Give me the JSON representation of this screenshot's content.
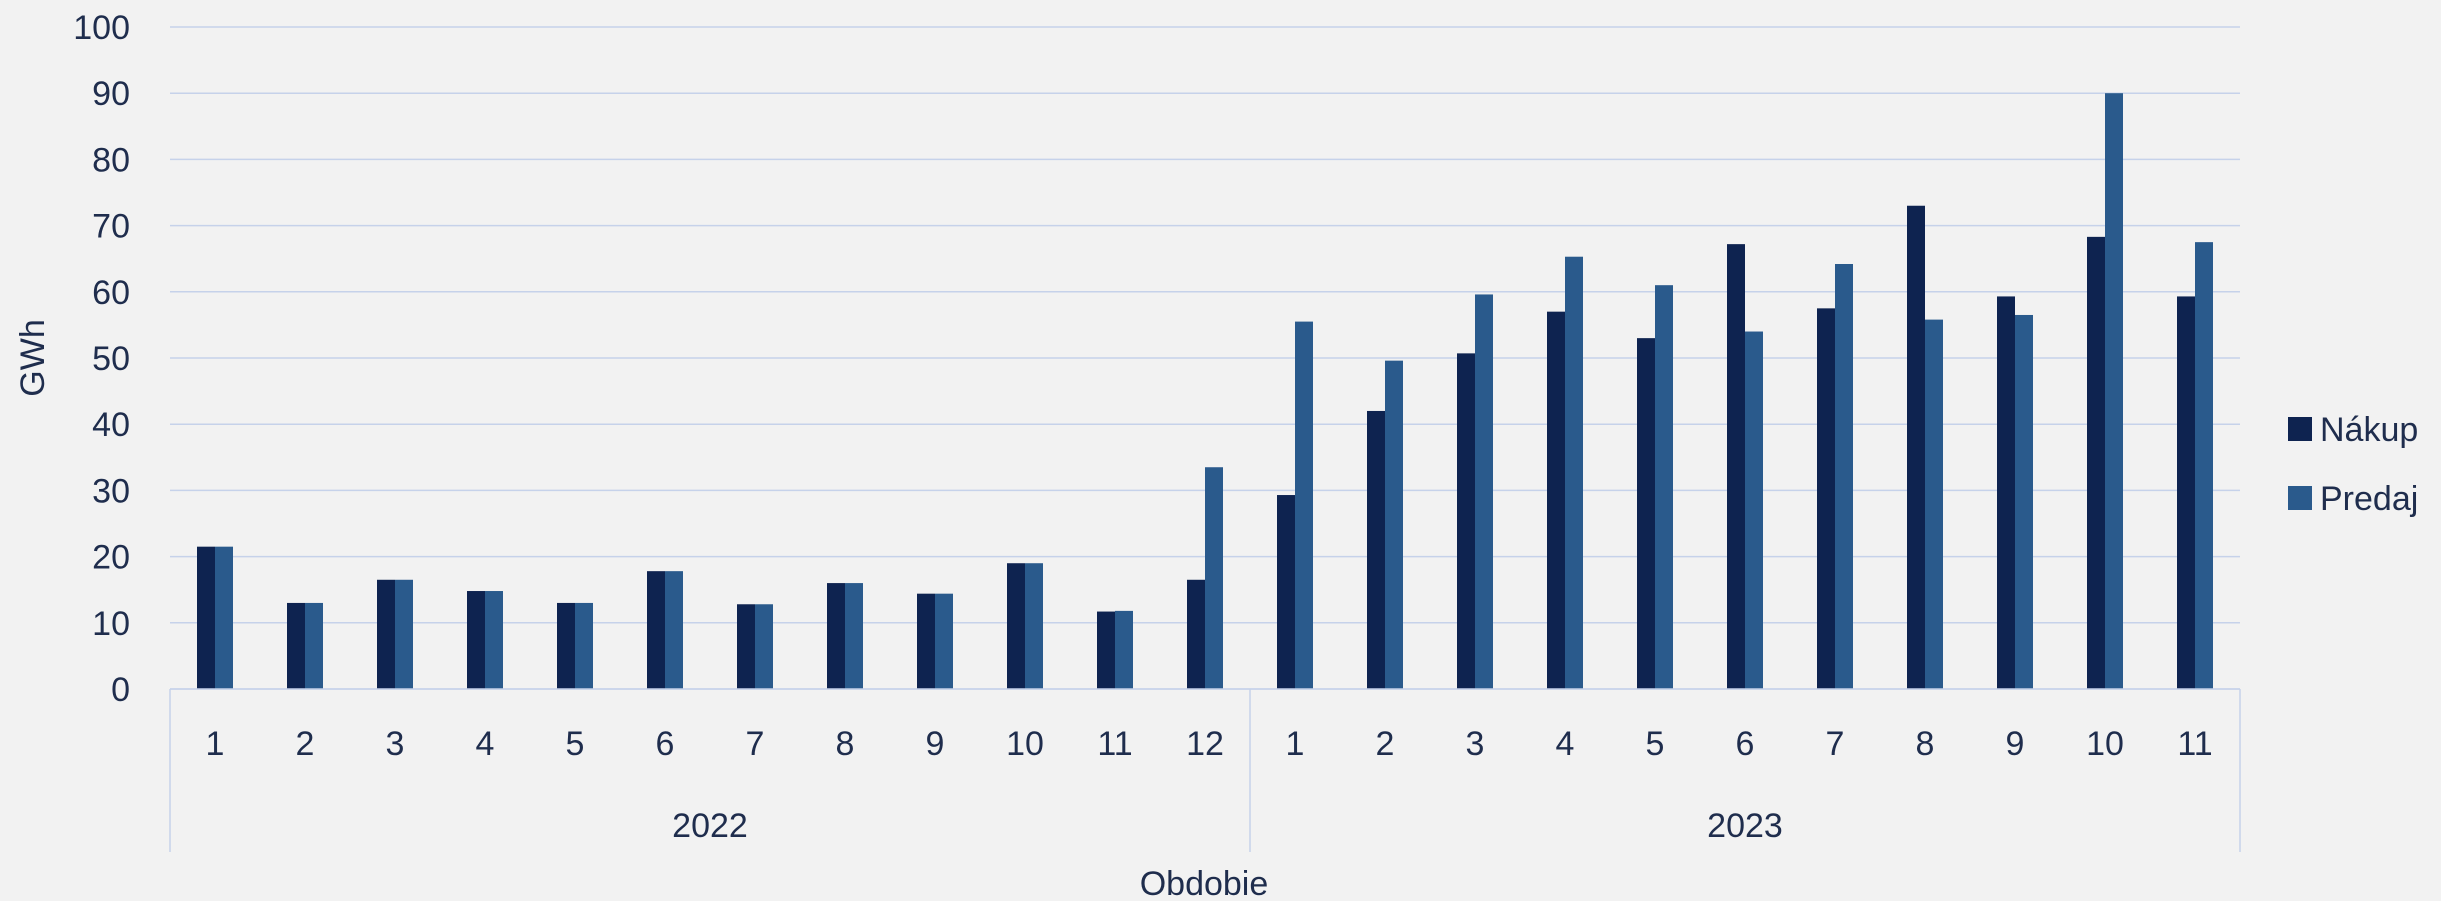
{
  "chart_data": {
    "type": "bar",
    "xlabel": "Obdobie",
    "ylabel": "GWh",
    "ylim": [
      0,
      100
    ],
    "yticks": [
      0,
      10,
      20,
      30,
      40,
      50,
      60,
      70,
      80,
      90,
      100
    ],
    "grid": true,
    "legend_position": "right",
    "groups": [
      {
        "label": "2022",
        "categories": [
          "1",
          "2",
          "3",
          "4",
          "5",
          "6",
          "7",
          "8",
          "9",
          "10",
          "11",
          "12"
        ]
      },
      {
        "label": "2023",
        "categories": [
          "1",
          "2",
          "3",
          "4",
          "5",
          "6",
          "7",
          "8",
          "9",
          "10",
          "11"
        ]
      }
    ],
    "series": [
      {
        "name": "Nákup",
        "color": "#0e2350",
        "values": [
          21.5,
          13,
          16.5,
          14.8,
          13,
          17.8,
          12.8,
          16,
          14.4,
          19,
          11.7,
          16.5,
          29.3,
          42,
          50.7,
          57,
          53,
          67.2,
          57.5,
          73,
          59.3,
          68.3,
          59.3
        ]
      },
      {
        "name": "Predaj",
        "color": "#2a5a8c",
        "values": [
          21.5,
          13,
          16.5,
          14.8,
          13,
          17.8,
          12.8,
          16,
          14.4,
          19,
          11.8,
          33.5,
          55.5,
          49.6,
          59.6,
          65.3,
          61,
          54,
          64.2,
          55.8,
          56.5,
          90,
          67.5
        ]
      }
    ]
  }
}
